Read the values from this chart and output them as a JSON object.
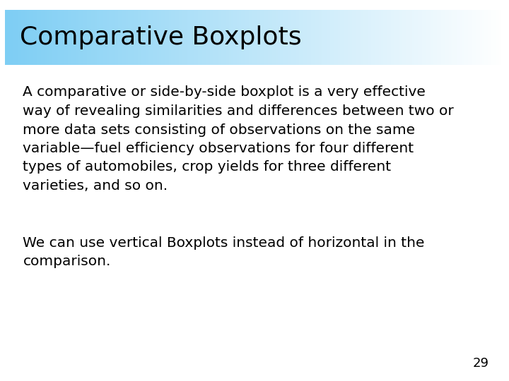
{
  "title": "Comparative Boxplots",
  "title_fontsize": 26,
  "title_color": "#000000",
  "title_bg_left": "#7ecef4",
  "title_bg_right": "#ffffff",
  "title_border_color": "#5bc8f5",
  "body_text_1": "A comparative or side-by-side boxplot is a very effective\nway of revealing similarities and differences between two or\nmore data sets consisting of observations on the same\nvariable—fuel efficiency observations for four different\ntypes of automobiles, crop yields for three different\nvarieties, and so on.",
  "body_text_2": "We can use vertical Boxplots instead of horizontal in the\ncomparison.",
  "body_fontsize": 14.5,
  "body_color": "#000000",
  "page_number": "29",
  "page_number_fontsize": 13,
  "bg_color": "#ffffff"
}
